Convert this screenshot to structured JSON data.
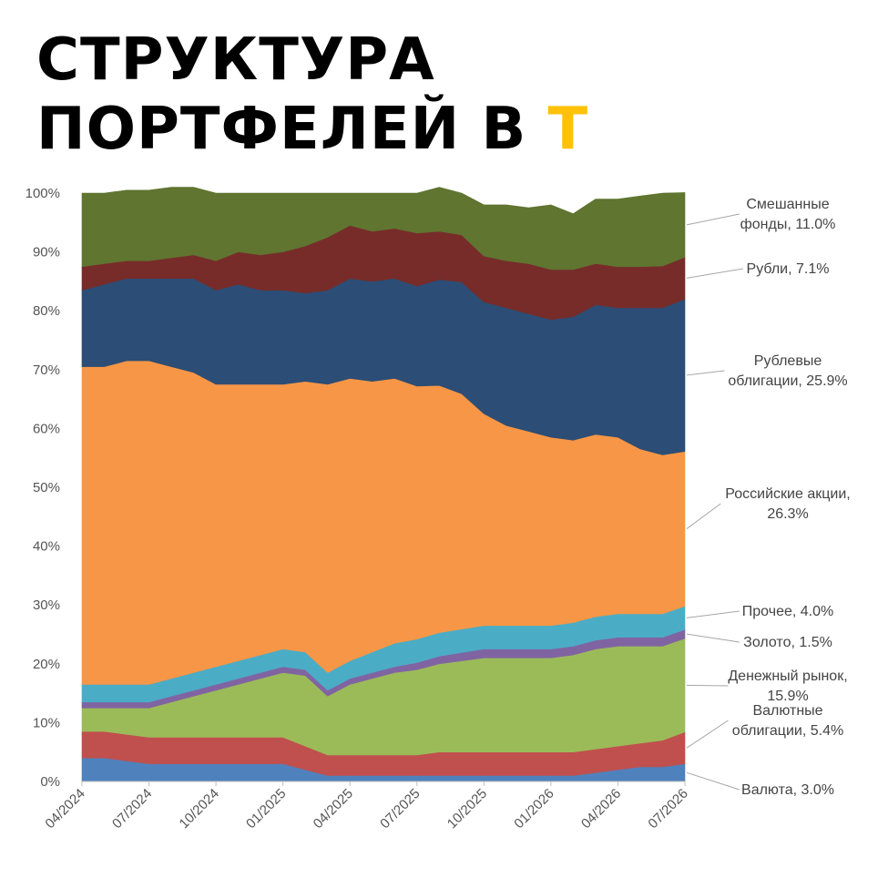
{
  "title": {
    "line1": "СТРУКТУРА",
    "line2_main": "ПОРТФЕЛЕЙ В ",
    "line2_accent": "Т",
    "accent_color": "#ffc107"
  },
  "chart_data": {
    "type": "area",
    "stacked": "percent",
    "x": [
      "04/2024",
      "05/2024",
      "06/2024",
      "07/2024",
      "08/2024",
      "09/2024",
      "10/2024",
      "11/2024",
      "12/2024",
      "01/2025",
      "02/2025",
      "03/2025",
      "04/2025",
      "05/2025",
      "06/2025",
      "07/2025",
      "08/2025",
      "09/2025",
      "10/2025",
      "11/2025",
      "12/2025",
      "01/2026",
      "02/2026",
      "03/2026",
      "04/2026",
      "05/2026",
      "06/2026",
      "07/2026"
    ],
    "x_ticks": [
      "04/2024",
      "07/2024",
      "10/2024",
      "01/2025",
      "04/2025",
      "07/2025",
      "10/2025",
      "01/2026",
      "04/2026",
      "07/2026"
    ],
    "y_ticks": [
      "0%",
      "10%",
      "20%",
      "30%",
      "40%",
      "50%",
      "60%",
      "70%",
      "80%",
      "90%",
      "100%"
    ],
    "ylim": [
      0,
      100
    ],
    "series": [
      {
        "name": "Валюта",
        "color": "#4f81bd",
        "legend": "Валюта, 3.0%",
        "values": [
          4,
          4,
          3.5,
          3,
          3,
          3,
          3,
          3,
          3,
          3,
          2,
          1,
          1,
          1,
          1,
          1,
          1,
          1,
          1,
          1,
          1,
          1,
          1,
          1.5,
          2,
          2.5,
          2.5,
          3
        ]
      },
      {
        "name": "Валютные облигации",
        "color": "#c0504d",
        "legend_lines": [
          "Валютные",
          "облигации, 5.4%"
        ],
        "values": [
          4.5,
          4.5,
          4.5,
          4.5,
          4.5,
          4.5,
          4.5,
          4.5,
          4.5,
          4.5,
          4,
          3.5,
          3.5,
          3.5,
          3.5,
          3.5,
          4,
          4,
          4,
          4,
          4,
          4,
          4,
          4,
          4,
          4,
          4.5,
          5.4
        ]
      },
      {
        "name": "Денежный рынок",
        "color": "#9bbb59",
        "legend_lines": [
          "Денежный рынок,",
          "15.9%"
        ],
        "values": [
          4,
          4,
          4.5,
          5,
          6,
          7,
          8,
          9,
          10,
          11,
          12,
          10,
          12,
          13,
          14,
          14.5,
          15,
          15.5,
          16,
          16,
          16,
          16,
          16.5,
          17,
          17,
          16.5,
          16,
          15.9
        ]
      },
      {
        "name": "Золото",
        "color": "#8064a2",
        "legend": "Золото, 1.5%",
        "values": [
          1,
          1,
          1,
          1,
          1,
          1,
          1,
          1,
          1,
          1,
          1,
          1,
          1,
          1,
          1,
          1.2,
          1.3,
          1.4,
          1.5,
          1.5,
          1.5,
          1.5,
          1.5,
          1.5,
          1.5,
          1.5,
          1.5,
          1.5
        ]
      },
      {
        "name": "Прочее",
        "color": "#4bacc6",
        "legend": "Прочее, 4.0%",
        "values": [
          3,
          3,
          3,
          3,
          3,
          3,
          3,
          3,
          3,
          3,
          3,
          3,
          3,
          3.5,
          4,
          4,
          4,
          4,
          4,
          4,
          4,
          4,
          4,
          4,
          4,
          4,
          4,
          4
        ]
      },
      {
        "name": "Российские акции",
        "color": "#f79646",
        "legend_lines": [
          "Российские акции,",
          "26.3%"
        ],
        "values": [
          54,
          54,
          55,
          55,
          53,
          51,
          48,
          47,
          46,
          45,
          46,
          49,
          48,
          46,
          45,
          43,
          42,
          40,
          36,
          34,
          33,
          32,
          31,
          31,
          30,
          28,
          27,
          26.3
        ]
      },
      {
        "name": "Рублевые облигации",
        "color": "#2c4d75",
        "legend_lines": [
          "Рублевые",
          "облигации, 25.9%"
        ],
        "values": [
          13,
          14,
          14,
          14,
          15,
          16,
          16,
          17,
          16,
          16,
          15,
          16,
          17,
          17,
          17,
          17,
          18,
          19,
          19,
          20,
          20,
          20,
          21,
          22,
          22,
          24,
          25,
          25.9
        ]
      },
      {
        "name": "Рубли",
        "color": "#772c2a",
        "legend": "Рубли, 7.1%",
        "values": [
          4,
          3.5,
          3,
          3,
          3.5,
          4,
          5,
          5.5,
          6,
          6.5,
          8,
          9,
          9,
          8.5,
          8.5,
          9,
          8.2,
          8,
          7.8,
          8,
          8.5,
          8.5,
          8,
          7,
          7,
          7,
          7.1,
          7.1
        ]
      },
      {
        "name": "Смешанные фонды",
        "color": "#5f7530",
        "legend_lines": [
          "Смешанные",
          "фонды, 11.0%"
        ],
        "values": [
          12.5,
          12,
          12,
          12,
          12,
          11.5,
          11.5,
          10,
          10.5,
          10,
          9,
          7.5,
          5.5,
          6.5,
          6,
          6.8,
          7.5,
          7.1,
          8.7,
          9.5,
          9.5,
          11,
          9.5,
          11,
          11.5,
          12,
          12.4,
          11
        ]
      }
    ]
  }
}
